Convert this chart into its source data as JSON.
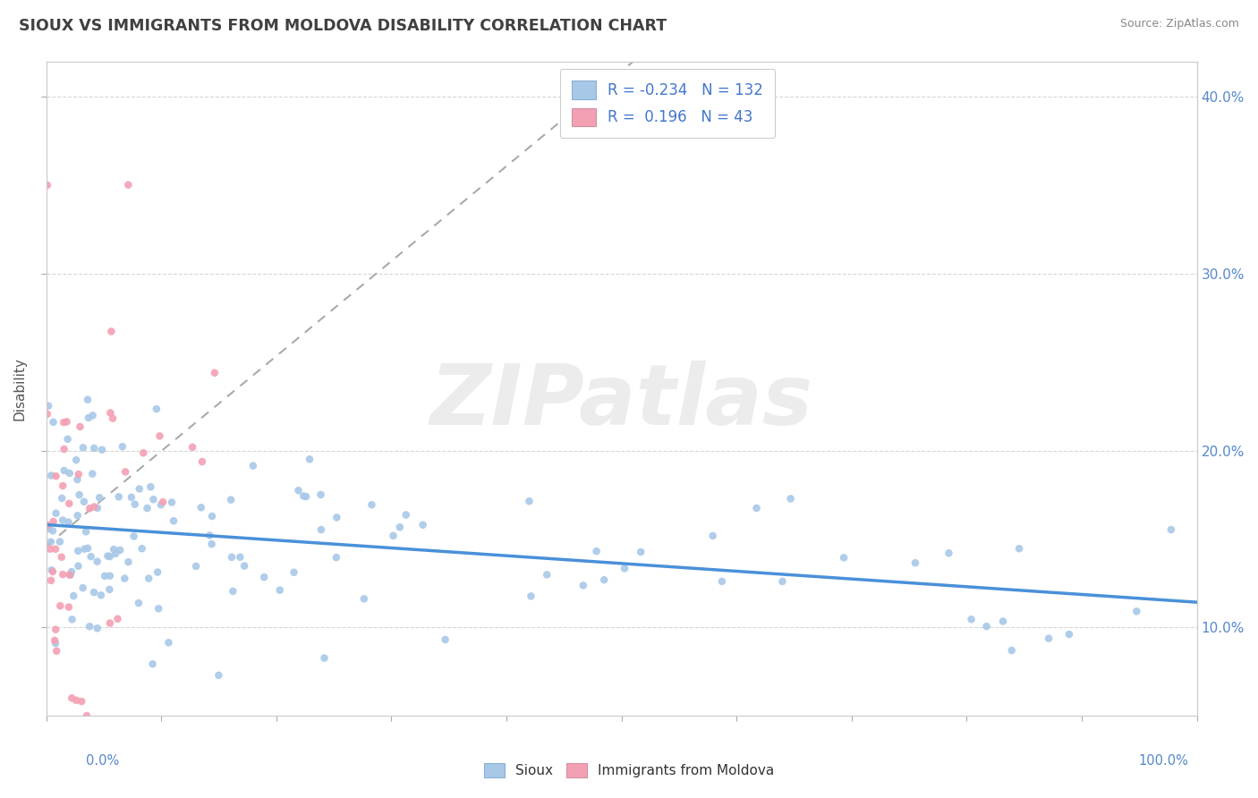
{
  "title": "SIOUX VS IMMIGRANTS FROM MOLDOVA DISABILITY CORRELATION CHART",
  "source": "Source: ZipAtlas.com",
  "ylabel": "Disability",
  "legend_entries": [
    {
      "label": "Sioux",
      "R": "-0.234",
      "N": "132",
      "color": "#aec6e8"
    },
    {
      "label": "Immigrants from Moldova",
      "R": "0.196",
      "N": "43",
      "color": "#f4a8b8"
    }
  ],
  "sioux_dot_color": "#a8c8e8",
  "moldova_dot_color": "#f4a0b4",
  "sioux_line_color": "#4a90d9",
  "moldova_line_color": "#aaaaaa",
  "background_color": "#ffffff",
  "grid_color": "#cccccc",
  "title_color": "#404040",
  "r_value_color": "#4477cc",
  "watermark_text": "ZIPatlas",
  "ymin": 5.0,
  "ymax": 42.0,
  "xmin": 0.0,
  "xmax": 100.0,
  "y_ticks": [
    10,
    20,
    30,
    40
  ],
  "x_ticks": [
    0,
    10,
    20,
    30,
    40,
    50,
    60,
    70,
    80,
    90,
    100
  ]
}
